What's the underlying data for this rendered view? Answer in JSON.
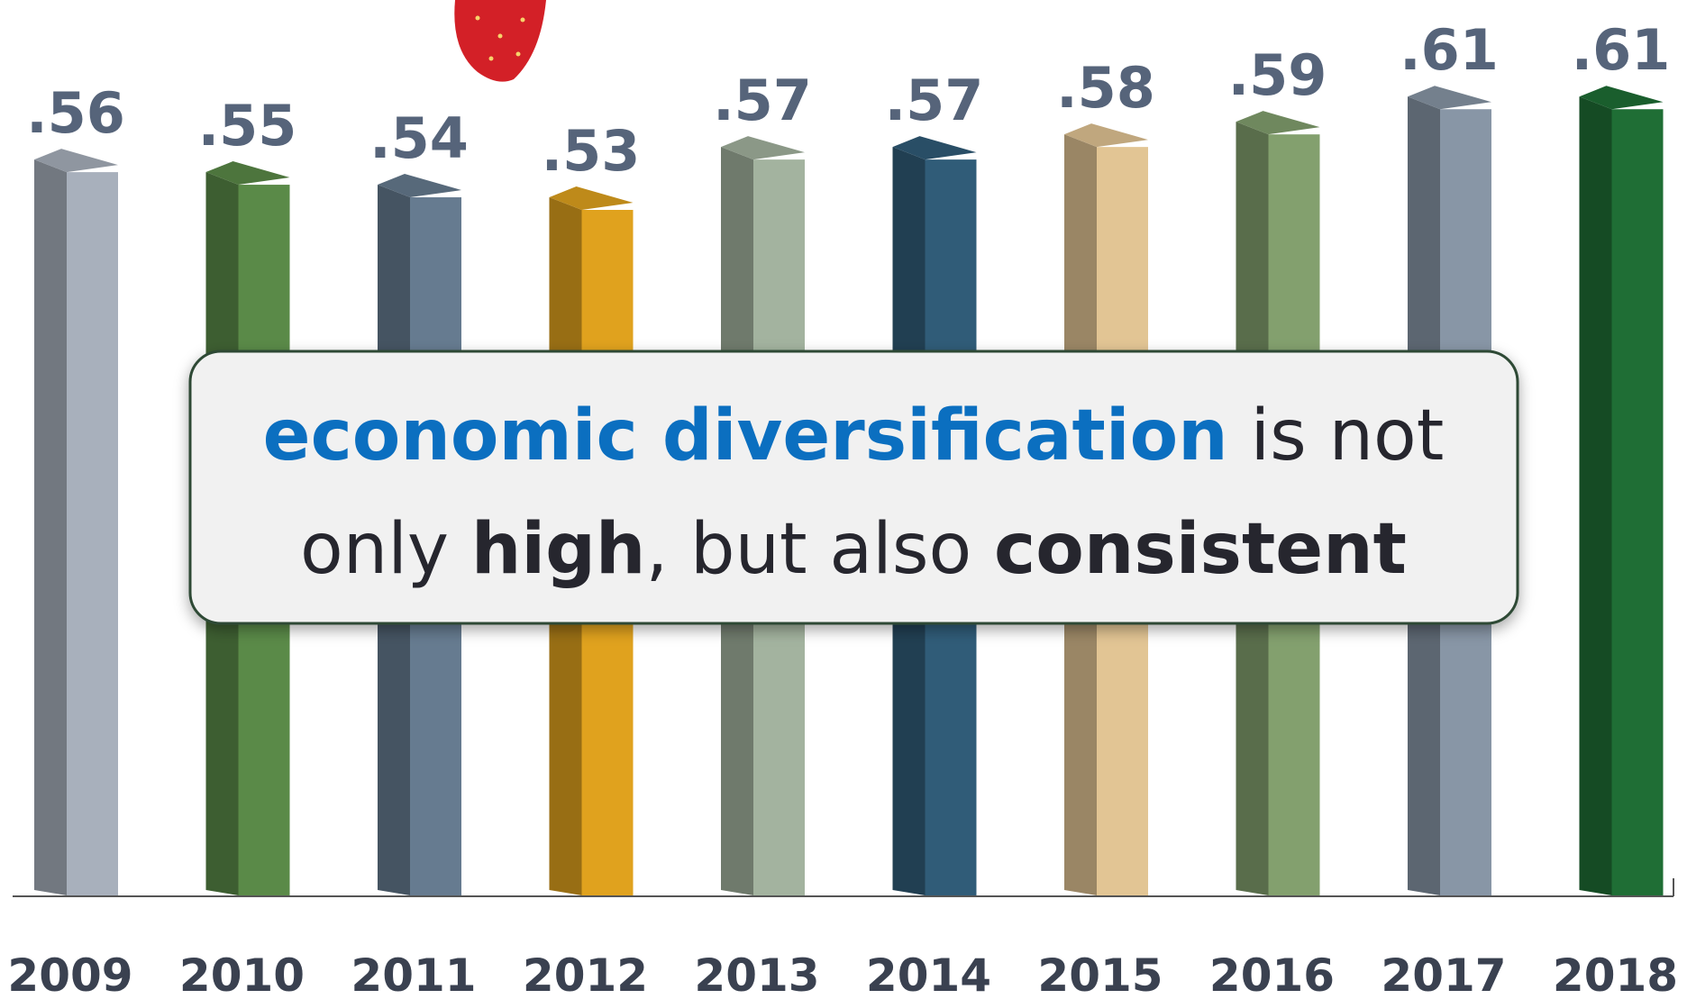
{
  "chart_data": {
    "type": "bar",
    "categories": [
      "2009",
      "2010",
      "2011",
      "2012",
      "2013",
      "2014",
      "2015",
      "2016",
      "2017",
      "2018"
    ],
    "values": [
      0.56,
      0.55,
      0.54,
      0.53,
      0.57,
      0.57,
      0.58,
      0.59,
      0.61,
      0.61
    ],
    "value_labels": [
      ".56",
      ".55",
      ".54",
      ".53",
      ".57",
      ".57",
      ".58",
      ".59",
      ".61",
      ".61"
    ],
    "colors": [
      "#a8b0bc",
      "#5a8a48",
      "#667b90",
      "#e0a21e",
      "#a3b39f",
      "#305c78",
      "#e2c594",
      "#83a06e",
      "#8896a6",
      "#1f6e35"
    ],
    "annotation": [
      {
        "text": "economic diversification",
        "style": "highlight"
      },
      {
        "text": " is not",
        "style": "plain"
      },
      {
        "text": "only ",
        "style": "plain"
      },
      {
        "text": "high",
        "style": "bold"
      },
      {
        "text": ", but also ",
        "style": "plain"
      },
      {
        "text": "consistent",
        "style": "bold"
      }
    ]
  }
}
